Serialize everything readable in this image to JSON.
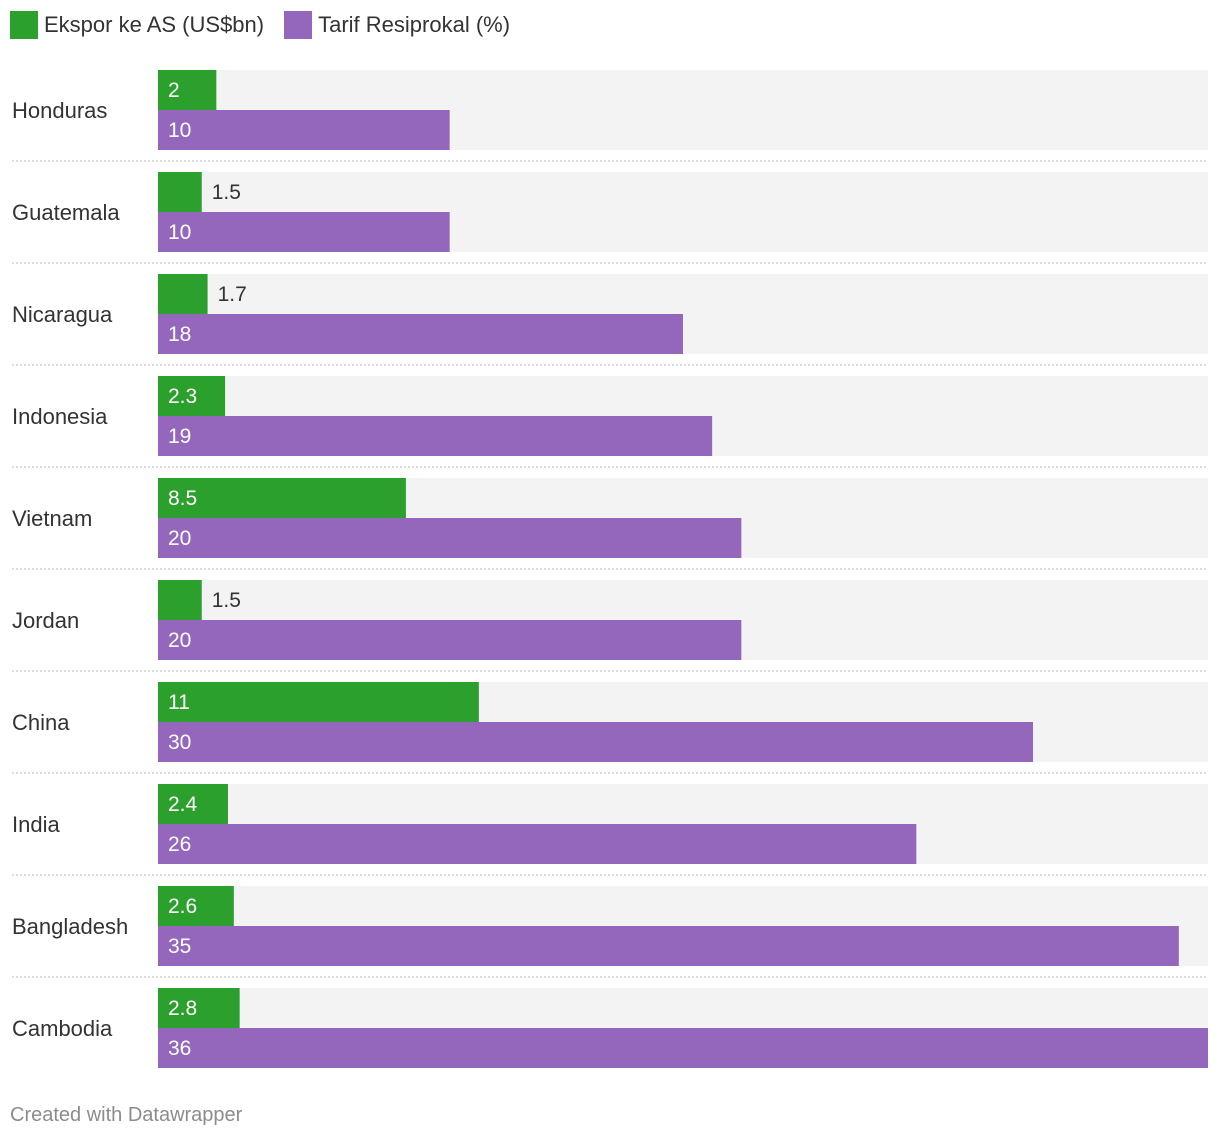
{
  "chart_data": {
    "type": "bar",
    "orientation": "horizontal-grouped",
    "categories": [
      "Honduras",
      "Guatemala",
      "Nicaragua",
      "Indonesia",
      "Vietnam",
      "Jordan",
      "China",
      "India",
      "Bangladesh",
      "Cambodia"
    ],
    "series": [
      {
        "name": "Ekspor ke AS (US$bn)",
        "color": "#2ca02c",
        "values": [
          2,
          1.5,
          1.7,
          2.3,
          8.5,
          1.5,
          11,
          2.4,
          2.6,
          2.8
        ],
        "labels": [
          "2",
          "1.5",
          "1.7",
          "2.3",
          "8.5",
          "1.5",
          "11",
          "2.4",
          "2.6",
          "2.8"
        ]
      },
      {
        "name": "Tarif Resiprokal (%)",
        "color": "#9467bd",
        "values": [
          10,
          10,
          18,
          19,
          20,
          20,
          30,
          26,
          35,
          36
        ],
        "labels": [
          "10",
          "10",
          "18",
          "19",
          "20",
          "20",
          "30",
          "26",
          "35",
          "36"
        ]
      }
    ],
    "xlim": [
      0,
      36
    ],
    "grid": false,
    "legend": "top-left",
    "background_color": "#f3f3f3"
  },
  "footer": {
    "credit": "Created with Datawrapper"
  }
}
